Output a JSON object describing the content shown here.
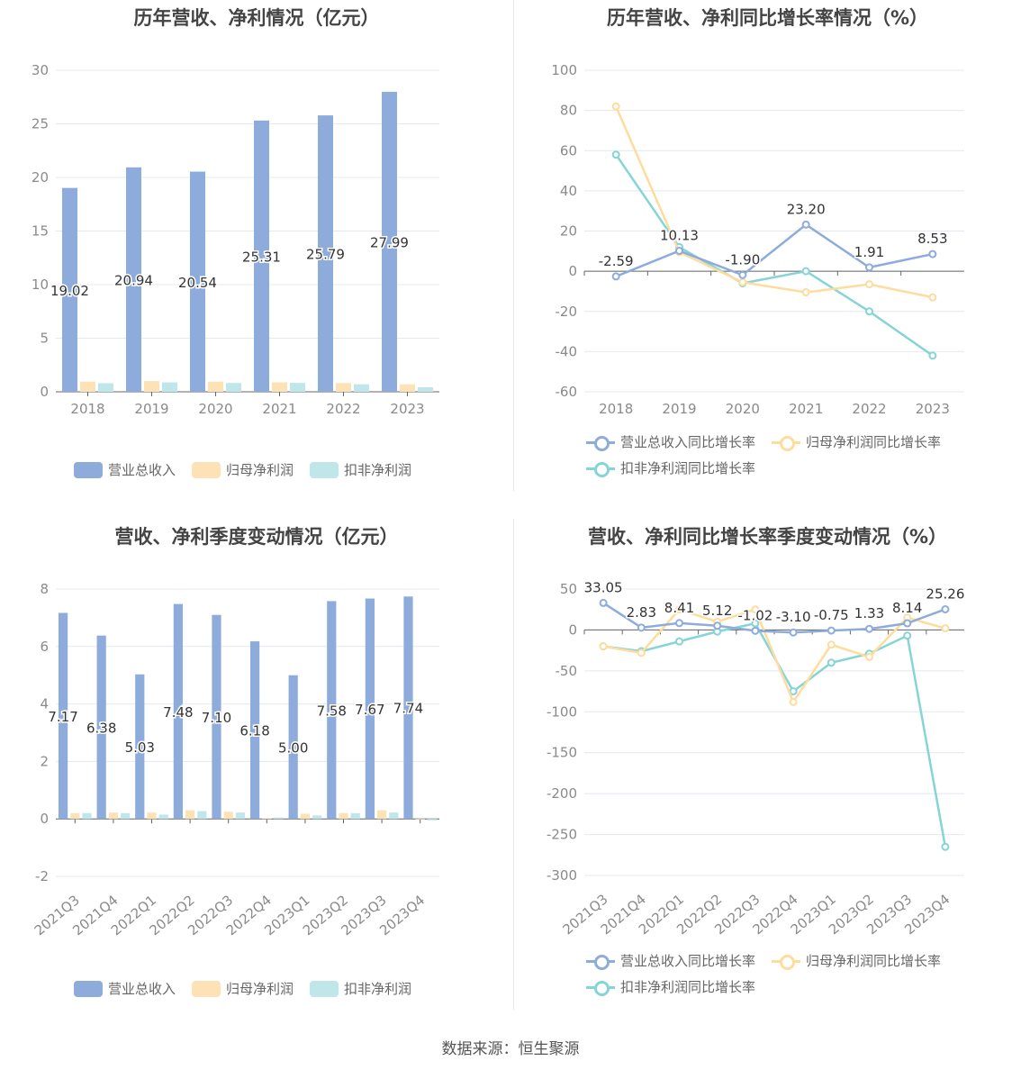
{
  "colors": {
    "revenue": "#8eacdb",
    "parent_net": "#fde2b6",
    "deducted_net": "#bfe7ea",
    "line_revenue": "#8eacdb",
    "line_parent": "#fedc9e",
    "line_deducted": "#85d4d6",
    "grid": "#e4e8f0",
    "axis": "#666666"
  },
  "source": "数据来源：恒生聚源",
  "legends": {
    "bar": [
      "营业总收入",
      "归母净利润",
      "扣非净利润"
    ],
    "line": [
      "营业总收入同比增长率",
      "归母净利润同比增长率",
      "扣非净利润同比增长率"
    ]
  },
  "chart_data": [
    {
      "id": "annual-bar",
      "type": "bar",
      "title": "历年营收、净利情况（亿元）",
      "categories": [
        "2018",
        "2019",
        "2020",
        "2021",
        "2022",
        "2023"
      ],
      "ylim": [
        0,
        30
      ],
      "yticks": [
        0,
        5,
        10,
        15,
        20,
        25,
        30
      ],
      "grid": true,
      "legend": "bottom",
      "series": [
        {
          "name": "营业总收入",
          "values": [
            19.02,
            20.94,
            20.54,
            25.31,
            25.79,
            27.99
          ],
          "labels": [
            "19.02",
            "20.94",
            "20.54",
            "25.31",
            "25.79",
            "27.99"
          ]
        },
        {
          "name": "归母净利润",
          "values": [
            0.95,
            1.0,
            0.95,
            0.88,
            0.82,
            0.7
          ]
        },
        {
          "name": "扣非净利润",
          "values": [
            0.8,
            0.88,
            0.82,
            0.83,
            0.7,
            0.42
          ]
        }
      ]
    },
    {
      "id": "annual-line",
      "type": "line",
      "title": "历年营收、净利同比增长率情况（%）",
      "categories": [
        "2018",
        "2019",
        "2020",
        "2021",
        "2022",
        "2023"
      ],
      "ylim": [
        -60,
        100
      ],
      "yticks": [
        -60,
        -40,
        -20,
        0,
        20,
        40,
        60,
        80,
        100
      ],
      "grid": true,
      "legend": "bottom",
      "series": [
        {
          "name": "营业总收入同比增长率",
          "values": [
            -2.59,
            10.13,
            -1.9,
            23.2,
            1.91,
            8.53
          ],
          "labels": [
            "-2.59",
            "10.13",
            "-1.90",
            "23.20",
            "1.91",
            "8.53"
          ]
        },
        {
          "name": "归母净利润同比增长率",
          "values": [
            82,
            9.5,
            -5.5,
            -10.5,
            -6.5,
            -13
          ]
        },
        {
          "name": "扣非净利润同比增长率",
          "values": [
            58,
            12,
            -6,
            0,
            -20,
            -42
          ]
        }
      ]
    },
    {
      "id": "quarter-bar",
      "type": "bar",
      "title": "营收、净利季度变动情况（亿元）",
      "categories": [
        "2021Q3",
        "2021Q4",
        "2022Q1",
        "2022Q2",
        "2022Q3",
        "2022Q4",
        "2023Q1",
        "2023Q2",
        "2023Q3",
        "2023Q4"
      ],
      "ylim": [
        -2,
        8
      ],
      "yticks": [
        -2,
        0,
        2,
        4,
        6,
        8
      ],
      "grid": true,
      "legend": "bottom",
      "series": [
        {
          "name": "营业总收入",
          "values": [
            7.17,
            6.38,
            5.03,
            7.48,
            7.1,
            6.18,
            5.0,
            7.58,
            7.67,
            7.74
          ],
          "labels": [
            "7.17",
            "6.38",
            "5.03",
            "7.48",
            "7.10",
            "6.18",
            "5.00",
            "7.58",
            "7.67",
            "7.74"
          ]
        },
        {
          "name": "归母净利润",
          "values": [
            0.2,
            0.22,
            0.22,
            0.3,
            0.25,
            0.02,
            0.18,
            0.2,
            0.3,
            -0.02
          ]
        },
        {
          "name": "扣非净利润",
          "values": [
            0.2,
            0.2,
            0.15,
            0.27,
            0.22,
            0.05,
            0.12,
            0.2,
            0.22,
            -0.05
          ]
        }
      ]
    },
    {
      "id": "quarter-line",
      "type": "line",
      "title": "营收、净利同比增长率季度变动情况（%）",
      "categories": [
        "2021Q3",
        "2021Q4",
        "2022Q1",
        "2022Q2",
        "2022Q3",
        "2022Q4",
        "2023Q1",
        "2023Q2",
        "2023Q3",
        "2023Q4"
      ],
      "ylim": [
        -300,
        50
      ],
      "yticks": [
        -300,
        -250,
        -200,
        -150,
        -100,
        -50,
        0,
        50
      ],
      "grid": true,
      "legend": "bottom",
      "series": [
        {
          "name": "营业总收入同比增长率",
          "values": [
            33.05,
            2.83,
            8.41,
            5.12,
            -1.02,
            -3.1,
            -0.75,
            1.33,
            8.14,
            25.26
          ],
          "labels": [
            "33.05",
            "2.83",
            "8.41",
            "5.12",
            "-1.02",
            "-3.10",
            "-0.75",
            "1.33",
            "8.14",
            "25.26"
          ]
        },
        {
          "name": "归母净利润同比增长率",
          "values": [
            -20,
            -28,
            25,
            10,
            25,
            -88,
            -18,
            -33,
            15,
            2
          ]
        },
        {
          "name": "扣非净利润同比增长率",
          "values": [
            -20,
            -26,
            -14,
            -2,
            8,
            -75,
            -40,
            -29,
            -7,
            -265
          ]
        }
      ]
    }
  ]
}
